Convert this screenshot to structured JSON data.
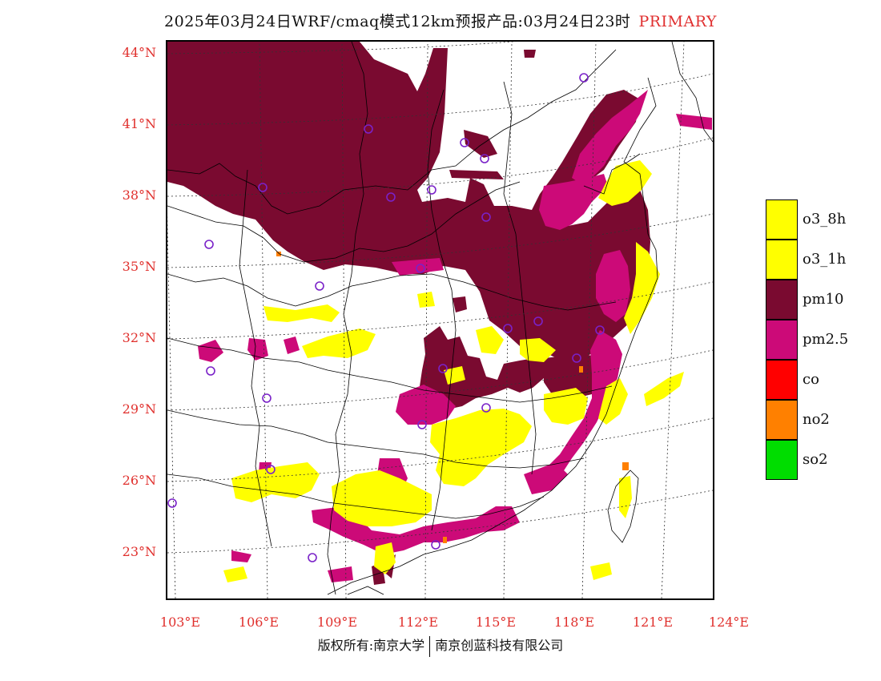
{
  "title": {
    "main": "2025年03月24日WRF/cmaq模式12km预报产品:03月24日23时",
    "tag": "PRIMARY"
  },
  "map": {
    "lat_labels": [
      "44°N",
      "41°N",
      "38°N",
      "35°N",
      "32°N",
      "29°N",
      "26°N",
      "23°N"
    ],
    "lon_labels": [
      "103°E",
      "106°E",
      "109°E",
      "112°E",
      "115°E",
      "118°E",
      "121°E",
      "124°E"
    ]
  },
  "legend": [
    {
      "label": "o3_8h",
      "color": "#ffff00"
    },
    {
      "label": "o3_1h",
      "color": "#ffff00"
    },
    {
      "label": "pm10",
      "color": "#7a0a30"
    },
    {
      "label": "pm2.5",
      "color": "#cc0a78"
    },
    {
      "label": "co",
      "color": "#ff0000"
    },
    {
      "label": "no2",
      "color": "#ff8000"
    },
    {
      "label": "so2",
      "color": "#00dd00"
    }
  ],
  "colors": {
    "pm10": "#7a0a30",
    "pm25": "#cc0a78",
    "o3": "#ffff00",
    "no2": "#ff8000",
    "station": "#7a22c8",
    "axis_text": "#e0302d"
  },
  "footer": {
    "left": "版权所有:南京大学",
    "right": "南京创蓝科技有限公司"
  }
}
